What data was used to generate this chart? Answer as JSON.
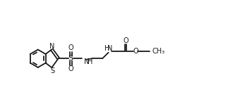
{
  "bg_color": "#ffffff",
  "line_color": "#1a1a1a",
  "line_width": 1.3,
  "font_size": 7.0,
  "fig_width": 3.4,
  "fig_height": 1.48,
  "dpi": 100,
  "xlim": [
    0,
    10
  ],
  "ylim": [
    0,
    4.35
  ]
}
